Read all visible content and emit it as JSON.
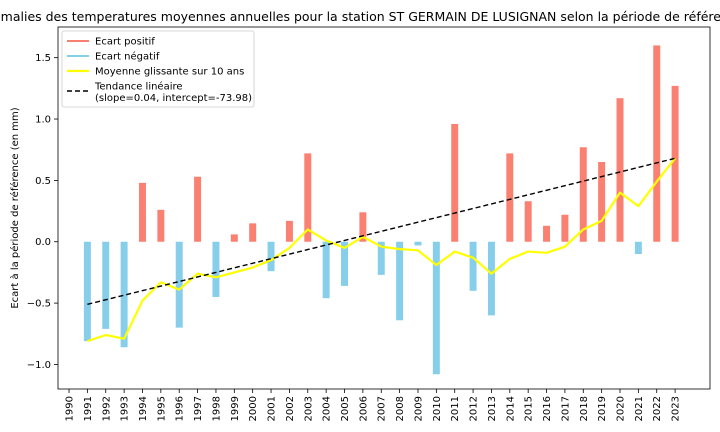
{
  "chart_data": {
    "type": "bar",
    "title": "Anomalies des temperatures moyennes annuelles pour la station ST GERMAIN DE LUSIGNAN selon la période de référence",
    "ylabel": "Ecart à la période de référence (en mm)",
    "xlabel": "",
    "xlim": [
      1989.25,
      1985.25
    ],
    "ylim": [
      -1.2,
      1.75
    ],
    "yticks": [
      -1.0,
      -0.5,
      0.0,
      0.5,
      1.0,
      1.5
    ],
    "ytick_labels": [
      "−1.0",
      "−0.5",
      "0.0",
      "0.5",
      "1.0",
      "1.5"
    ],
    "x": [
      1990,
      1991,
      1992,
      1993,
      1994,
      1995,
      1996,
      1997,
      1998,
      1999,
      2000,
      2001,
      2002,
      2003,
      2004,
      2005,
      2006,
      2007,
      2008,
      2009,
      2010,
      2011,
      2012,
      2013,
      2014,
      2015,
      2016,
      2017,
      2018,
      2019,
      2020,
      2021,
      2022,
      2023
    ],
    "x_tick_labels": [
      "1990",
      "1991",
      "1992",
      "1993",
      "1994",
      "1995",
      "1996",
      "1997",
      "1998",
      "1999",
      "2000",
      "2001",
      "2002",
      "2003",
      "2004",
      "2005",
      "2006",
      "2007",
      "2008",
      "2009",
      "2010",
      "2011",
      "2012",
      "2013",
      "2014",
      "2015",
      "2016",
      "2017",
      "2018",
      "2019",
      "2020",
      "2021",
      "2022",
      "2023"
    ],
    "values": [
      null,
      -0.81,
      -0.71,
      -0.86,
      0.48,
      0.26,
      -0.7,
      0.53,
      -0.45,
      0.06,
      0.15,
      -0.24,
      0.17,
      0.72,
      -0.46,
      -0.36,
      0.24,
      -0.27,
      -0.64,
      -0.03,
      -1.08,
      0.96,
      -0.4,
      -0.6,
      0.72,
      0.33,
      0.13,
      0.22,
      0.77,
      0.65,
      1.17,
      -0.1,
      1.6,
      1.27
    ],
    "moving_average": {
      "x": [
        1991,
        1992,
        1993,
        1994,
        1995,
        1996,
        1997,
        1998,
        1999,
        2000,
        2001,
        2002,
        2003,
        2004,
        2005,
        2006,
        2007,
        2008,
        2009,
        2010,
        2011,
        2012,
        2013,
        2014,
        2015,
        2016,
        2017,
        2018,
        2019,
        2020,
        2021,
        2022,
        2023
      ],
      "values": [
        -0.81,
        -0.76,
        -0.79,
        -0.48,
        -0.33,
        -0.39,
        -0.26,
        -0.29,
        -0.25,
        -0.21,
        -0.15,
        -0.05,
        0.1,
        0.01,
        -0.05,
        0.04,
        -0.04,
        -0.06,
        -0.07,
        -0.19,
        -0.08,
        -0.13,
        -0.26,
        -0.14,
        -0.08,
        -0.09,
        -0.04,
        0.1,
        0.17,
        0.4,
        0.29,
        0.49,
        0.68
      ]
    },
    "trend": {
      "x0": 1991,
      "x1": 2023,
      "slope": 0.04,
      "intercept": -73.98,
      "y0": -0.51,
      "y1": 0.68
    },
    "legend": {
      "position": "top-left",
      "items": [
        {
          "label": "Ecart positif",
          "color": "#fa8072"
        },
        {
          "label": "Ecart négatif",
          "color": "#87ceeb"
        },
        {
          "label": "Moyenne glissante sur 10 ans",
          "color": "#ffff00"
        },
        {
          "label": "Tendance linéaire",
          "label2": "(slope=0.04, intercept=-73.98)",
          "color": "#000000"
        }
      ]
    },
    "colors": {
      "positive": "#fa8072",
      "negative": "#87ceeb",
      "moving_average": "#ffff00",
      "trend": "#000000"
    },
    "grid": false
  }
}
